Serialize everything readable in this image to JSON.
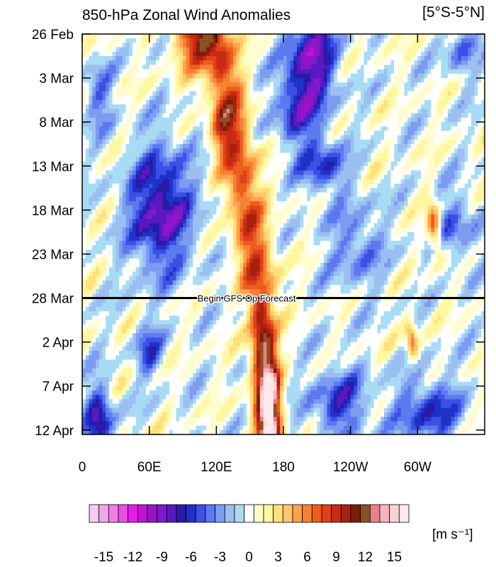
{
  "chart_data": {
    "type": "heatmap",
    "title": "850-hPa Zonal Wind Anomalies",
    "region": "[5°S-5°N]",
    "x_ticks": [
      {
        "lon": 0,
        "label": "0"
      },
      {
        "lon": 60,
        "label": "60E"
      },
      {
        "lon": 120,
        "label": "120E"
      },
      {
        "lon": 180,
        "label": "180"
      },
      {
        "lon": 240,
        "label": "120W"
      },
      {
        "lon": 300,
        "label": "60W"
      }
    ],
    "x_range": [
      0,
      360
    ],
    "y_ticks": [
      {
        "day": 0,
        "label": "26 Feb"
      },
      {
        "day": 5,
        "label": "3 Mar"
      },
      {
        "day": 10,
        "label": "8 Mar"
      },
      {
        "day": 15,
        "label": "13 Mar"
      },
      {
        "day": 20,
        "label": "18 Mar"
      },
      {
        "day": 25,
        "label": "23 Mar"
      },
      {
        "day": 30,
        "label": "28 Mar"
      },
      {
        "day": 35,
        "label": "2 Apr"
      },
      {
        "day": 40,
        "label": "7 Apr"
      },
      {
        "day": 45,
        "label": "12 Apr"
      }
    ],
    "y_range": [
      0,
      45.5
    ],
    "forecast_line": {
      "day": 30,
      "label": "Begin GFS Op Forecast"
    },
    "colorbar": {
      "unit": "[m s⁻¹]",
      "tick_labels": [
        "-15",
        "-12",
        "-9",
        "-6",
        "-3",
        "0",
        "3",
        "6",
        "9",
        "12",
        "15"
      ],
      "colors": [
        "#f9c8f0",
        "#f4a6ea",
        "#f07ee6",
        "#e84fe2",
        "#ea1be8",
        "#c212d6",
        "#9a12c8",
        "#7e1ac8",
        "#5a18c2",
        "#2a1aa8",
        "#1e32c8",
        "#3c50e6",
        "#5c7af0",
        "#7c9cf2",
        "#9cbff2",
        "#a8dcf4",
        "#ffffff",
        "#fffdd0",
        "#fff6a0",
        "#ffe07a",
        "#ffc670",
        "#ffa24a",
        "#f58232",
        "#ec5e1e",
        "#e0401a",
        "#c82a14",
        "#a8200f",
        "#801a0c",
        "#8a5222",
        "#e8808a",
        "#f4b4c0",
        "#f9d2d6",
        "#fde8ea"
      ],
      "min": -16.5,
      "step": 1
    },
    "features": [
      {
        "name": "westerly-burst-date-line",
        "kind": "positive",
        "lon": [
          140,
          190
        ],
        "days": [
          0,
          45.5
        ],
        "peak": 15
      },
      {
        "name": "easterly-central-pacific",
        "kind": "negative",
        "lon": [
          170,
          230
        ],
        "days": [
          0,
          14
        ],
        "peak": -9
      },
      {
        "name": "easterly-indian-ocean",
        "kind": "negative",
        "lon": [
          25,
          100
        ],
        "days": [
          11,
          29
        ],
        "peak": -9
      },
      {
        "name": "westerly-atlantic-streak",
        "kind": "positive",
        "lon": [
          290,
          330
        ],
        "days": [
          20,
          37
        ],
        "peak": 9
      }
    ]
  }
}
